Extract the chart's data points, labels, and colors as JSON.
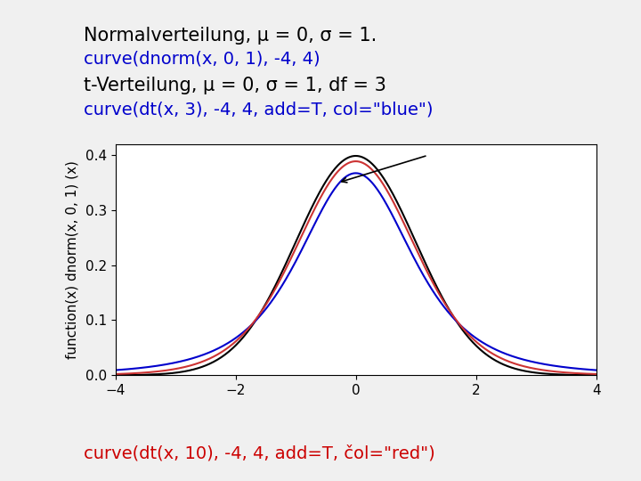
{
  "title_line1": "Normalverteilung, μ = 0, σ = 1.",
  "title_line1_color": "black",
  "code_line1": "curve(dnorm(x, 0, 1), -4, 4)",
  "code_line1_color": "#0000CC",
  "title_line2": "t-Verteilung, μ = 0, σ = 1, df = 3",
  "title_line2_color": "black",
  "code_line2": "curve(dt(x, 3), -4, 4, add=T, col=\"blue\")",
  "code_line2_color": "#0000CC",
  "bottom_text": "curve(dt(x, 10), -4, 4, add=T, čol=\"red\")",
  "bottom_text_color": "#CC0000",
  "xlim": [
    -4,
    4
  ],
  "ylim": [
    0.0,
    0.42
  ],
  "yticks": [
    0.0,
    0.1,
    0.2,
    0.3,
    0.4
  ],
  "xticks": [
    -4,
    -2,
    0,
    2,
    4
  ],
  "ylabel": "function(x) dnorm(x, 0, 1) (x)",
  "normal_color": "black",
  "t3_color": "#0000CC",
  "t10_color": "#CC3333",
  "background": "#f0f0f0",
  "plot_bg": "white",
  "font_size_title": 15,
  "font_size_code": 14,
  "font_size_bottom": 14,
  "font_size_axis": 11,
  "font_size_tick": 11
}
